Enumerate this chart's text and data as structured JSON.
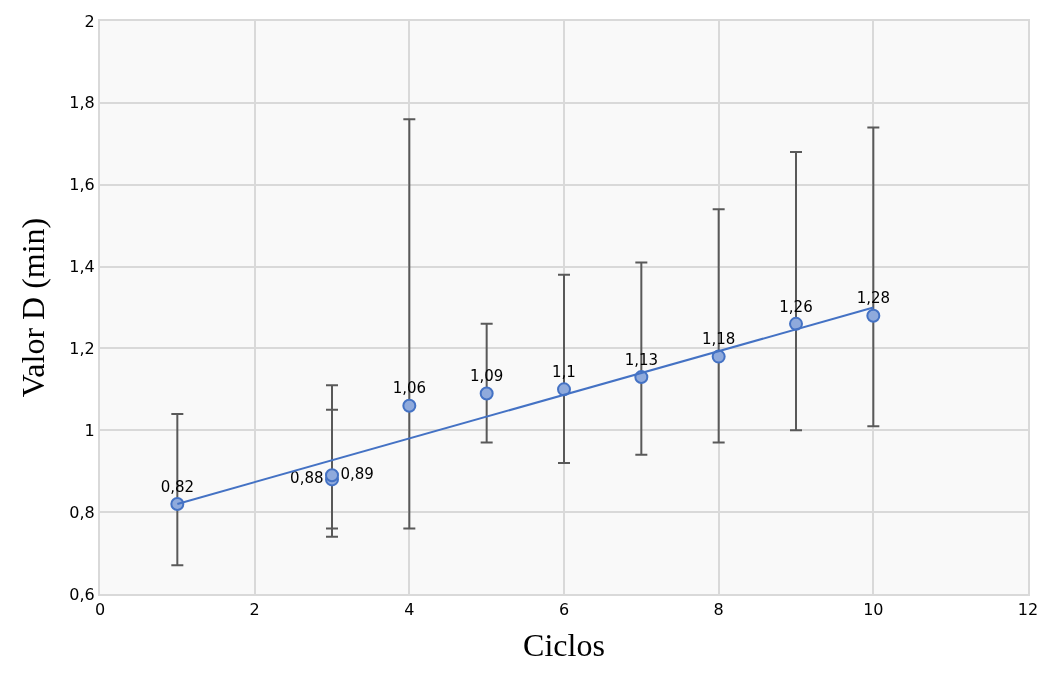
{
  "chart_data": {
    "type": "scatter",
    "xlabel": "Ciclos",
    "ylabel": "Valor D (min)",
    "xlim": [
      0,
      12
    ],
    "xticks": [
      0,
      2,
      4,
      6,
      8,
      10,
      12
    ],
    "ylim": [
      0.6,
      2
    ],
    "yticks": [
      {
        "value": 0.6,
        "label": "0,6"
      },
      {
        "value": 0.8,
        "label": "0,8"
      },
      {
        "value": 1,
        "label": "1"
      },
      {
        "value": 1.2,
        "label": "1,2"
      },
      {
        "value": 1.4,
        "label": "1,4"
      },
      {
        "value": 1.6,
        "label": "1,6"
      },
      {
        "value": 1.8,
        "label": "1,8"
      },
      {
        "value": 2,
        "label": "2"
      }
    ],
    "grid": true,
    "marker": "circle",
    "series": [
      {
        "color": "#8faadc",
        "x": [
          1,
          3,
          3,
          4,
          5,
          6,
          7,
          8,
          9,
          10
        ],
        "values": [
          0.82,
          0.88,
          0.89,
          1.06,
          1.09,
          1.1,
          1.13,
          1.18,
          1.26,
          1.28
        ],
        "errors": [
          [
            0.67,
            1.04
          ],
          [
            0.74,
            1.05
          ],
          [
            0.76,
            1.11
          ],
          [
            0.76,
            1.76
          ],
          [
            0.97,
            1.26
          ],
          [
            0.92,
            1.38
          ],
          [
            0.94,
            1.41
          ],
          [
            0.97,
            1.54
          ],
          [
            1.0,
            1.68
          ],
          [
            1.01,
            1.74
          ]
        ],
        "value_labels": [
          "0,82",
          "0,88",
          "0,89",
          "1,06",
          "1,09",
          "1,1",
          "1,13",
          "1,18",
          "1,26",
          "1,28"
        ]
      },
      {
        "type": "line",
        "color": "#4472c4",
        "x": [
          1,
          10
        ],
        "values": [
          0.82,
          1.3
        ],
        "line_style": "solid",
        "marker": "none"
      }
    ]
  }
}
